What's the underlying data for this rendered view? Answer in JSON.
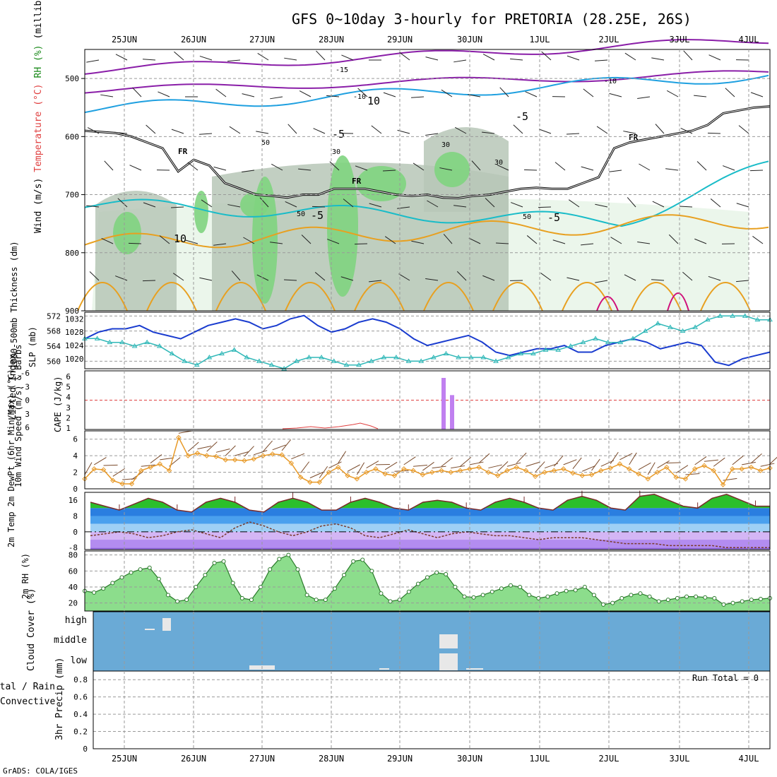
{
  "title": "GFS 0~10day 3-hourly for PRETORIA (28.25E, 26S)",
  "credit": "GrADS: COLA/IGES",
  "dates": [
    "25JUN",
    "26JUN",
    "27JUN",
    "28JUN",
    "29JUN",
    "30JUN",
    "1JUL",
    "2JUL",
    "3JUL",
    "4JUL"
  ],
  "run_total": "Run Total = 0",
  "colors": {
    "rh_green_light": "#e8f4e8",
    "rh_gray": "#b7c7b7",
    "rh_green": "#7fd47f",
    "temp_purple": "#8a1ea8",
    "temp_blue": "#1fa0e0",
    "temp_cyan": "#19bcc8",
    "temp_orange": "#e8a020",
    "temp_magenta": "#d0107a",
    "slp_blue": "#1a3ccf",
    "thick_teal": "#30b8b8",
    "cape_purple": "#c080f0",
    "li_red": "#e04040",
    "wind_orange": "#e89a28",
    "barb_brown": "#7a4a2a",
    "rh2m_green": "#33cc33",
    "cloud_blue": "#6aaad6"
  },
  "chart_data": [
    {
      "panel": "upper-air",
      "type": "heatmap",
      "ylabel_parts": [
        "Wind (m/s)",
        "Temperature (°C)",
        "RH (%)",
        "(millibars)"
      ],
      "yticks": [
        500,
        600,
        700,
        800,
        900
      ],
      "ylim": [
        450,
        900
      ],
      "freezing_label": "FR",
      "contour_labels": [
        "-15",
        "-10",
        "-10",
        "-5",
        "-5",
        "-5",
        "-5",
        "10",
        "10",
        "30",
        "30",
        "30",
        "50",
        "50",
        "50"
      ],
      "freezing_level_mb": [
        590,
        592,
        594,
        600,
        610,
        620,
        660,
        640,
        650,
        680,
        690,
        700,
        702,
        705,
        700,
        700,
        690,
        690,
        690,
        695,
        700,
        702,
        700,
        705,
        706,
        702,
        700,
        695,
        690,
        688,
        690,
        690,
        680,
        670,
        620,
        610,
        605,
        600,
        595,
        590,
        580,
        560,
        555,
        550,
        548
      ]
    },
    {
      "panel": "slp-thickness",
      "type": "line",
      "ylabel_left": "1000-500mb Thickness (dm)",
      "ylabel_right": "SLP (mb)",
      "yticks_left": [
        560,
        564,
        568,
        572
      ],
      "yticks_right": [
        1020,
        1024,
        1028,
        1032
      ],
      "series": [
        {
          "name": "SLP (mb)",
          "values": [
            1026,
            1028,
            1029,
            1029,
            1030,
            1028,
            1027,
            1026,
            1028,
            1030,
            1031,
            1032,
            1031,
            1029,
            1030,
            1032,
            1033,
            1030,
            1028,
            1029,
            1031,
            1032,
            1031,
            1029,
            1026,
            1024,
            1025,
            1026,
            1027,
            1025,
            1022,
            1021,
            1022,
            1023,
            1023,
            1024,
            1022,
            1022,
            1024,
            1025,
            1026,
            1025,
            1023,
            1024,
            1025,
            1024,
            1019,
            1018,
            1020,
            1021,
            1022
          ]
        },
        {
          "name": "1000-500mb Thickness (dm)",
          "values": [
            566,
            566,
            565,
            565,
            564,
            565,
            564,
            562,
            560,
            559,
            561,
            562,
            563,
            561,
            560,
            559,
            558,
            560,
            561,
            561,
            560,
            559,
            559,
            560,
            561,
            561,
            560,
            560,
            561,
            562,
            561,
            561,
            561,
            560,
            561,
            562,
            562,
            563,
            563,
            564,
            565,
            566,
            565,
            565,
            566,
            568,
            570,
            569,
            568,
            569,
            571,
            572,
            572,
            572,
            571,
            571
          ]
        }
      ]
    },
    {
      "panel": "stability",
      "type": "bar",
      "ylabel_left": "Lifted Index",
      "ylabel_right": "CAPE (J/kg)",
      "yticks_left": [
        "-6",
        "-3",
        "0",
        "3",
        "6"
      ],
      "yticks_right": [
        1,
        2,
        3,
        4,
        5,
        6
      ],
      "cape_bars": [
        {
          "day": "29JUN",
          "value": 6
        },
        {
          "day": "29JUN",
          "value": 4
        }
      ]
    },
    {
      "panel": "wind10m",
      "type": "line",
      "ylabel": "10m Wind Speed (m/s) & Barbs",
      "yticks": [
        0,
        2,
        4,
        6
      ],
      "ylim": [
        0,
        7
      ],
      "series": [
        {
          "name": "10m Wind Speed",
          "values": [
            1.2,
            2.4,
            2.3,
            1.0,
            0.6,
            0.6,
            2.2,
            2.6,
            3.0,
            2.2,
            6.2,
            4.0,
            4.3,
            4.0,
            3.9,
            3.5,
            3.5,
            3.4,
            3.6,
            4.0,
            4.2,
            4.1,
            3.1,
            1.4,
            0.8,
            0.8,
            2.0,
            2.6,
            1.6,
            1.2,
            2.0,
            2.4,
            1.8,
            1.6,
            2.4,
            2.2,
            1.7,
            2.0,
            2.2,
            2.0,
            2.2,
            2.4,
            2.6,
            2.0,
            1.6,
            2.2,
            2.6,
            2.2,
            1.5,
            2.0,
            2.2,
            2.4,
            1.9,
            1.6,
            1.7,
            2.2,
            2.5,
            3.0,
            2.4,
            1.8,
            1.2,
            2.0,
            2.6,
            1.4,
            1.2,
            2.4,
            2.8,
            2.2,
            0.5,
            2.4,
            2.4,
            2.6,
            2.2,
            2.5
          ]
        }
      ]
    },
    {
      "panel": "temp2m",
      "type": "area",
      "ylabel": "2m Temp 2m DewPt (6hr Min/Max) (°C)",
      "yticks": [
        -8,
        0,
        8,
        16
      ],
      "ylim": [
        -9,
        20
      ],
      "series": [
        {
          "name": "2m Temp",
          "values": [
            15,
            13,
            11,
            14,
            17,
            15,
            11,
            10,
            15,
            17,
            15,
            11,
            10,
            15,
            17,
            15,
            11,
            11,
            15,
            17,
            15,
            12,
            11,
            15,
            16,
            15,
            12,
            11,
            15,
            17,
            15,
            12,
            11,
            16,
            18,
            16,
            12,
            11,
            18,
            19,
            16,
            13,
            12,
            17,
            19,
            16,
            13,
            13
          ]
        },
        {
          "name": "2m DewPt",
          "values": [
            -2,
            -1,
            0,
            -1,
            -3,
            -2,
            0,
            1,
            -1,
            -3,
            2,
            5,
            3,
            0,
            -2,
            0,
            3,
            4,
            2,
            -2,
            -3,
            -1,
            1,
            -1,
            -3,
            -1,
            0,
            -1,
            -2,
            -2,
            -3,
            -4,
            -3,
            -3,
            -3,
            -4,
            -5,
            -6,
            -6,
            -6,
            -7,
            -7,
            -7,
            -7,
            -8,
            -8,
            -8,
            -8
          ]
        }
      ]
    },
    {
      "panel": "rh2m",
      "type": "area",
      "ylabel": "2m RH (%)",
      "yticks": [
        20,
        40,
        60,
        80
      ],
      "ylim": [
        10,
        85
      ],
      "series": [
        {
          "name": "2m RH",
          "values": [
            35,
            33,
            38,
            45,
            52,
            58,
            62,
            64,
            50,
            30,
            22,
            24,
            40,
            55,
            70,
            72,
            45,
            26,
            24,
            40,
            62,
            75,
            80,
            62,
            30,
            24,
            24,
            38,
            55,
            72,
            74,
            60,
            32,
            22,
            24,
            34,
            44,
            52,
            58,
            56,
            40,
            28,
            27,
            30,
            34,
            38,
            42,
            40,
            30,
            26,
            28,
            32,
            35,
            36,
            40,
            30,
            18,
            20,
            26,
            30,
            32,
            28,
            22,
            24,
            26,
            28,
            28,
            27,
            26,
            18,
            20,
            22,
            24,
            25,
            26
          ]
        }
      ]
    },
    {
      "panel": "cloud",
      "type": "bar",
      "ylabel": "Cloud Cover (%)",
      "levels": [
        "high",
        "middle",
        "low"
      ]
    },
    {
      "panel": "precip",
      "type": "bar",
      "ylabel_left": "3hr Precip (mm)",
      "ylabel_side": [
        "Total / Rain",
        "Convective"
      ],
      "yticks": [
        0,
        0.2,
        0.4,
        0.6,
        0.8
      ],
      "ylim": [
        0,
        0.9
      ],
      "values": []
    }
  ]
}
